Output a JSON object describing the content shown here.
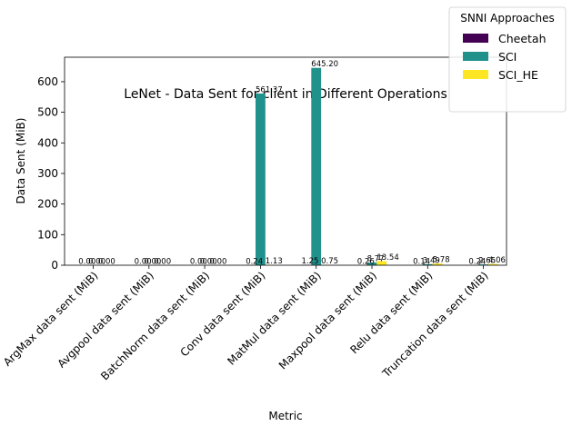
{
  "chart_data": {
    "type": "bar",
    "title": "LeNet - Data Sent for client in Different Operations",
    "xlabel": "Metric",
    "ylabel": "Data Sent (MiB)",
    "ylim": [
      0,
      680
    ],
    "yticks": [
      0,
      100,
      200,
      300,
      400,
      500,
      600
    ],
    "grid": false,
    "legend": {
      "title": "SNNI Approaches",
      "placement": "top-right"
    },
    "categories": [
      "ArgMax data sent (MiB)",
      "Avgpool data sent (MiB)",
      "BatchNorm data sent (MiB)",
      "Conv data sent (MiB)",
      "MatMul data sent (MiB)",
      "Maxpool data sent (MiB)",
      "Relu data sent (MiB)",
      "Truncation data sent (MiB)"
    ],
    "series": [
      {
        "name": "Cheetah",
        "color": "#440154",
        "values": [
          0.0,
          0.0,
          0.0,
          0.24,
          1.25,
          0.26,
          0.14,
          0.24
        ],
        "labels": [
          "0.00",
          "0.00",
          "0.00",
          "0.24",
          "1.25",
          "0.26",
          "0.14",
          "0.24"
        ]
      },
      {
        "name": "SCI",
        "color": "#21918c",
        "values": [
          0.0,
          0.0,
          0.0,
          561.37,
          645.2,
          8.77,
          3.49,
          2.65
        ],
        "labels": [
          "0.00",
          "0.00",
          "0.00",
          "561.37",
          "645.20",
          "8.77",
          "3.49",
          "2.65"
        ]
      },
      {
        "name": "SCI_HE",
        "color": "#fde725",
        "values": [
          0.0,
          0.0,
          0.0,
          1.13,
          0.75,
          13.54,
          5.78,
          4.06
        ],
        "labels": [
          "0.00",
          "0.00",
          "0.00",
          "1.13",
          "0.75",
          "13.54",
          "5.78",
          "4.06"
        ]
      }
    ]
  }
}
